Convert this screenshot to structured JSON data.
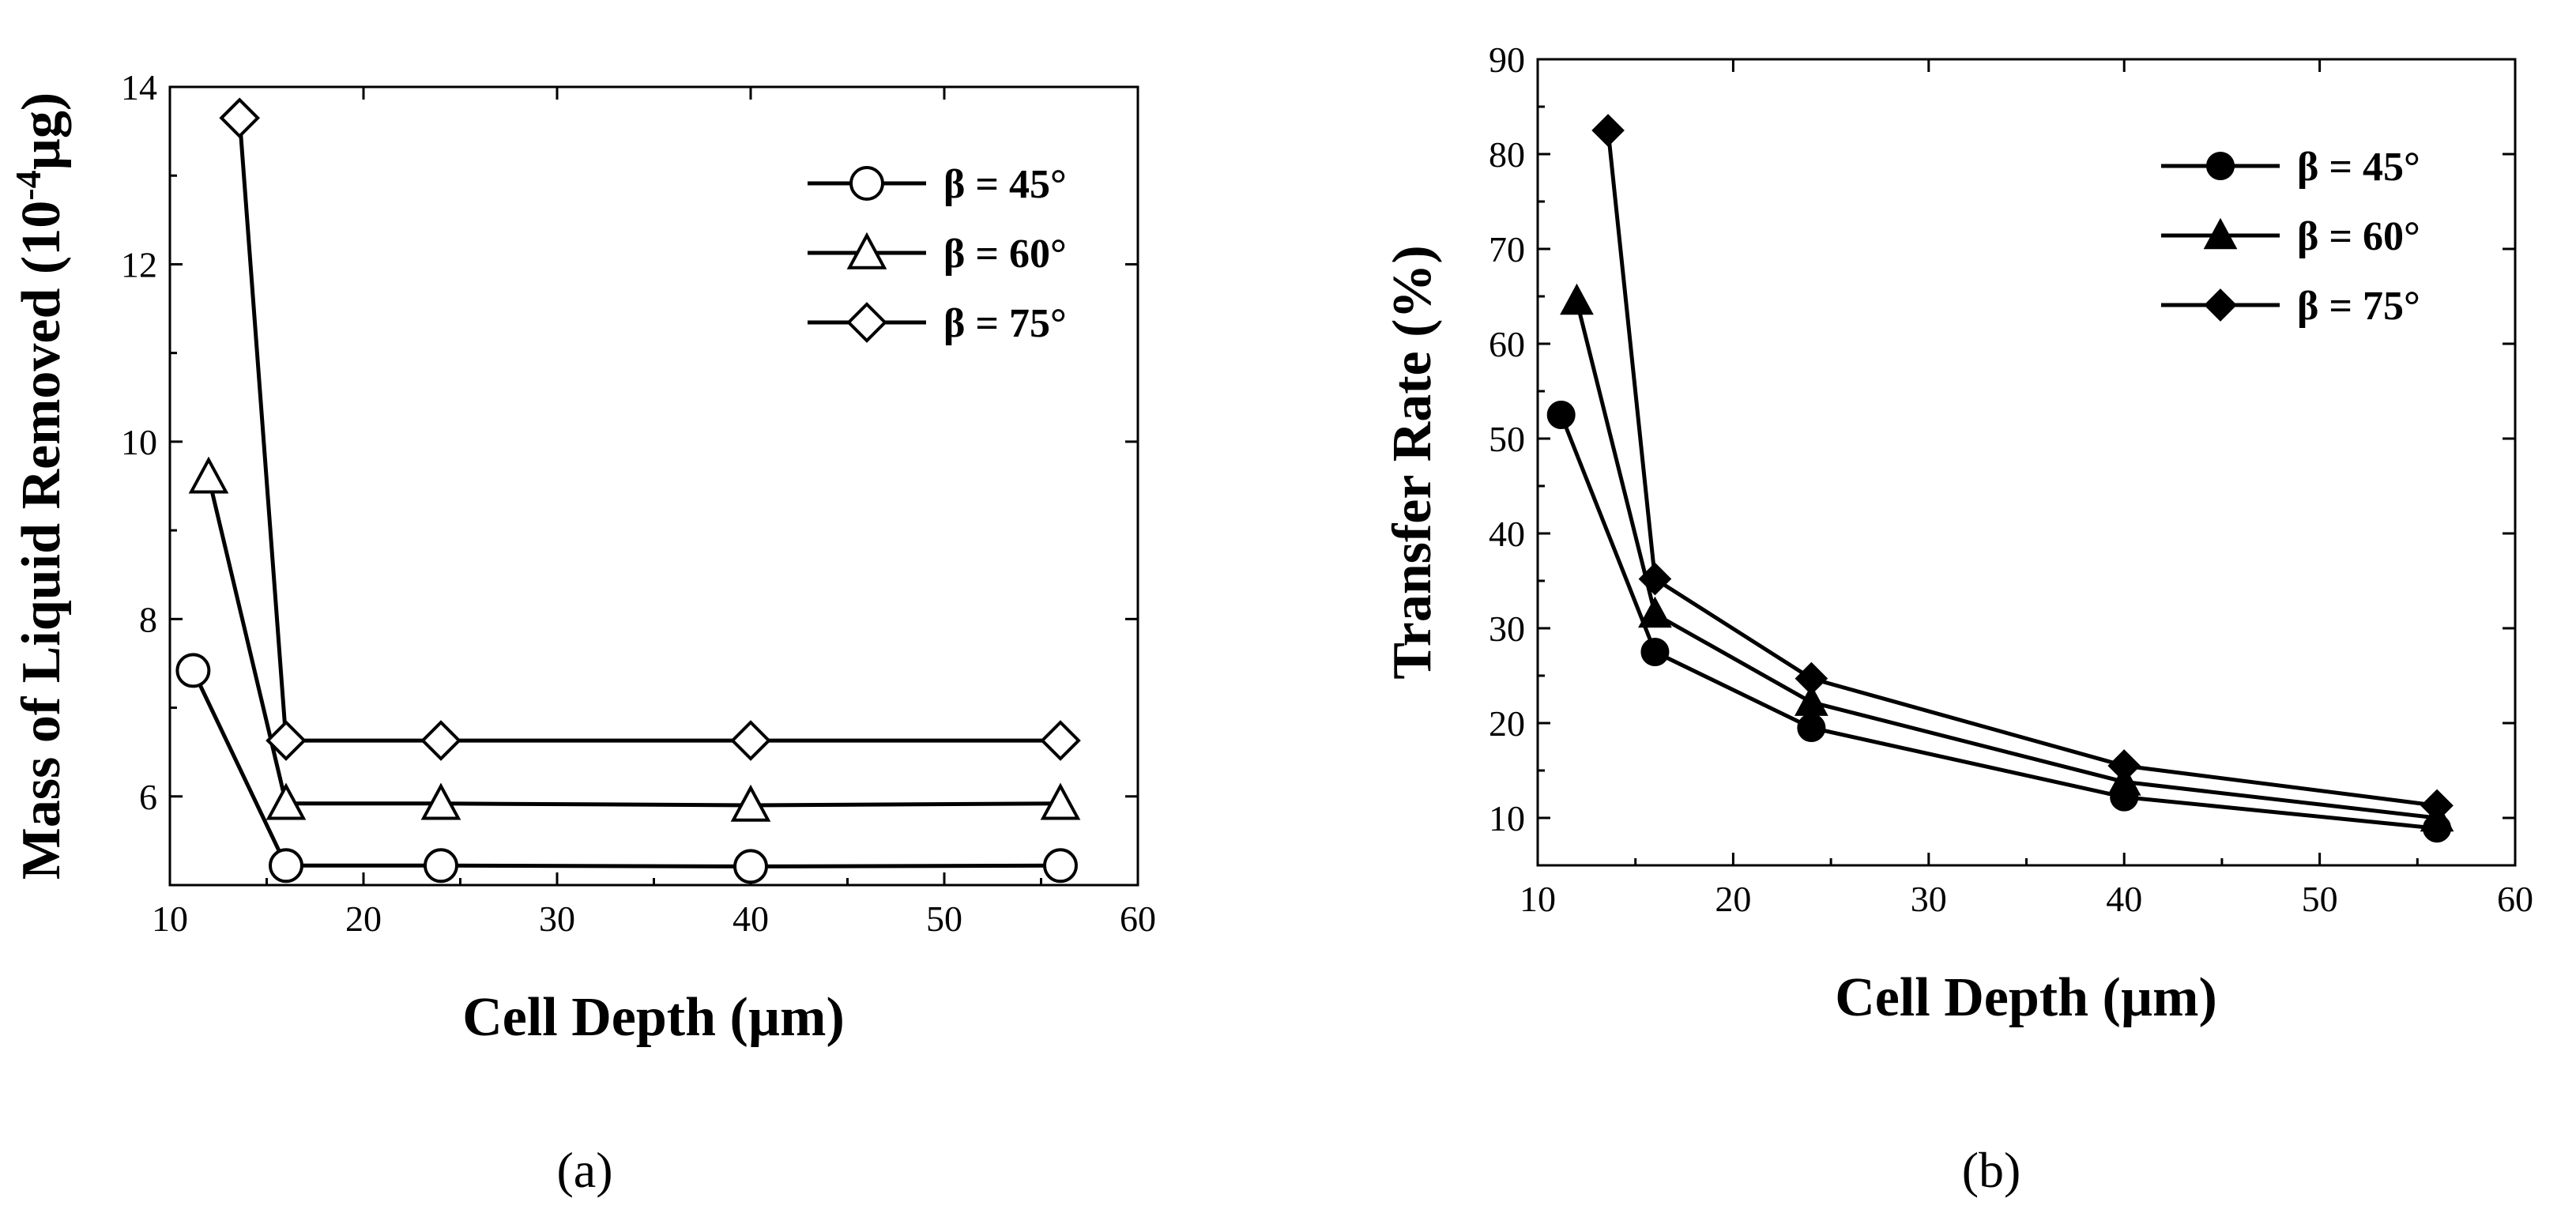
{
  "chart_data": [
    {
      "type": "line",
      "panel_label": "(a)",
      "title": "",
      "xlabel": "Cell Depth (µm)",
      "ylabel_pre": "Mass of Liquid Removed (10",
      "ylabel_sup": "-4",
      "ylabel_post": "µg)",
      "xlim": [
        10,
        60
      ],
      "ylim": [
        5,
        14
      ],
      "xticks": [
        10,
        20,
        30,
        40,
        50,
        60
      ],
      "yticks": [
        6,
        8,
        10,
        12,
        14
      ],
      "legend_position": "top-right",
      "marker_style": "hollow",
      "series": [
        {
          "name": "β = 45°",
          "marker": "circle",
          "x": [
            11.2,
            16,
            24,
            40,
            56
          ],
          "y": [
            7.42,
            5.22,
            5.22,
            5.21,
            5.22
          ]
        },
        {
          "name": "β = 60°",
          "marker": "triangle",
          "x": [
            12,
            16,
            24,
            40,
            56
          ],
          "y": [
            9.6,
            5.92,
            5.92,
            5.9,
            5.92
          ]
        },
        {
          "name": "β = 75°",
          "marker": "diamond",
          "x": [
            13.6,
            16,
            24,
            40,
            56
          ],
          "y": [
            13.65,
            6.63,
            6.63,
            6.63,
            6.63
          ]
        }
      ]
    },
    {
      "type": "line",
      "panel_label": "(b)",
      "title": "",
      "xlabel": "Cell Depth (µm)",
      "ylabel_pre": "Transfer Rate (%)",
      "ylabel_sup": "",
      "ylabel_post": "",
      "xlim": [
        10,
        60
      ],
      "ylim": [
        5,
        90
      ],
      "xticks": [
        10,
        20,
        30,
        40,
        50,
        60
      ],
      "yticks": [
        10,
        20,
        30,
        40,
        50,
        60,
        70,
        80,
        90
      ],
      "legend_position": "top-right",
      "marker_style": "filled",
      "series": [
        {
          "name": "β = 45°",
          "marker": "circle",
          "x": [
            11.2,
            16,
            24,
            40,
            56
          ],
          "y": [
            52.5,
            27.5,
            19.5,
            12.2,
            8.9
          ]
        },
        {
          "name": "β = 60°",
          "marker": "triangle",
          "x": [
            12,
            16,
            24,
            40,
            56
          ],
          "y": [
            64.5,
            31.5,
            22.2,
            13.8,
            10.0
          ]
        },
        {
          "name": "β = 75°",
          "marker": "diamond",
          "x": [
            13.6,
            16,
            24,
            40,
            56
          ],
          "y": [
            82.5,
            35.2,
            24.7,
            15.5,
            11.3
          ]
        }
      ]
    }
  ]
}
